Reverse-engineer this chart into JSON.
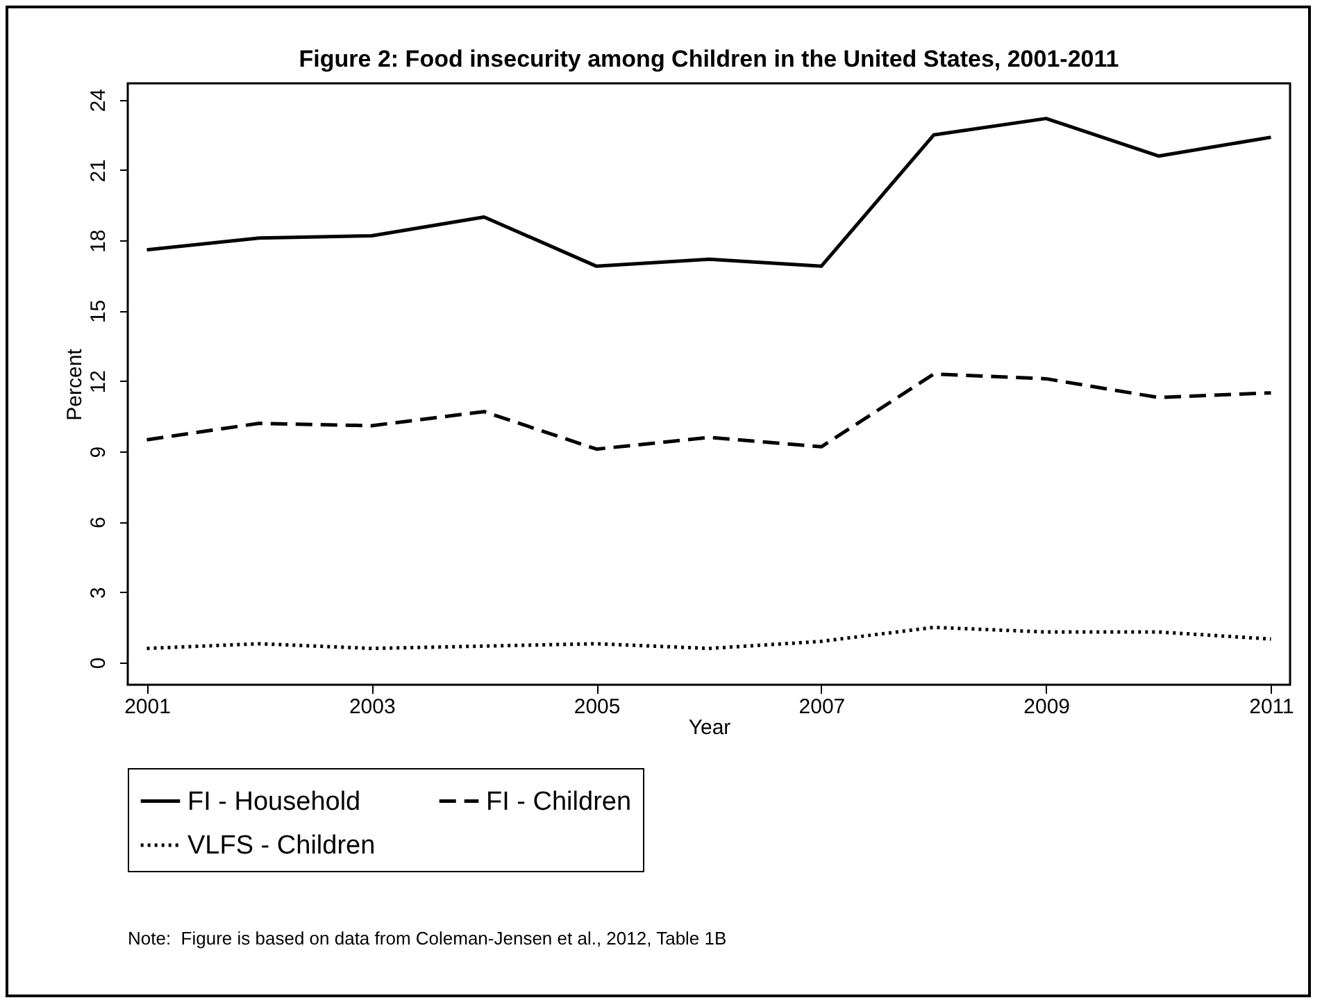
{
  "chart_data": {
    "type": "line",
    "title": "Figure 2:  Food insecurity among Children in the United States, 2001-2011",
    "xlabel": "Year",
    "ylabel": "Percent",
    "x": [
      2001,
      2002,
      2003,
      2004,
      2005,
      2006,
      2007,
      2008,
      2009,
      2010,
      2011
    ],
    "series": [
      {
        "name": "FI - Household",
        "color": "#000000",
        "line_style": "solid",
        "values": [
          17.6,
          18.1,
          18.2,
          19.0,
          16.9,
          17.2,
          16.9,
          22.5,
          23.2,
          21.6,
          22.4
        ]
      },
      {
        "name": "FI - Children",
        "color": "#000000",
        "line_style": "dashed",
        "values": [
          9.5,
          10.2,
          10.1,
          10.7,
          9.1,
          9.6,
          9.2,
          12.3,
          12.1,
          11.3,
          11.5
        ]
      },
      {
        "name": "VLFS - Children",
        "color": "#000000",
        "line_style": "dotted",
        "values": [
          0.6,
          0.8,
          0.6,
          0.7,
          0.8,
          0.6,
          0.9,
          1.5,
          1.3,
          1.3,
          1.0
        ]
      }
    ],
    "xlim": [
      2000.83,
      2011.17
    ],
    "xticks": [
      2001,
      2003,
      2005,
      2007,
      2009,
      2011
    ],
    "ylim": [
      -0.95,
      24.7
    ],
    "yticks": [
      0,
      3,
      6,
      9,
      12,
      15,
      18,
      21,
      24
    ],
    "grid": false,
    "legend": "bottom",
    "marker": "none",
    "annotations": [
      "Note:  Figure is based on data from Coleman-Jensen et al., 2012, Table 1B"
    ]
  }
}
